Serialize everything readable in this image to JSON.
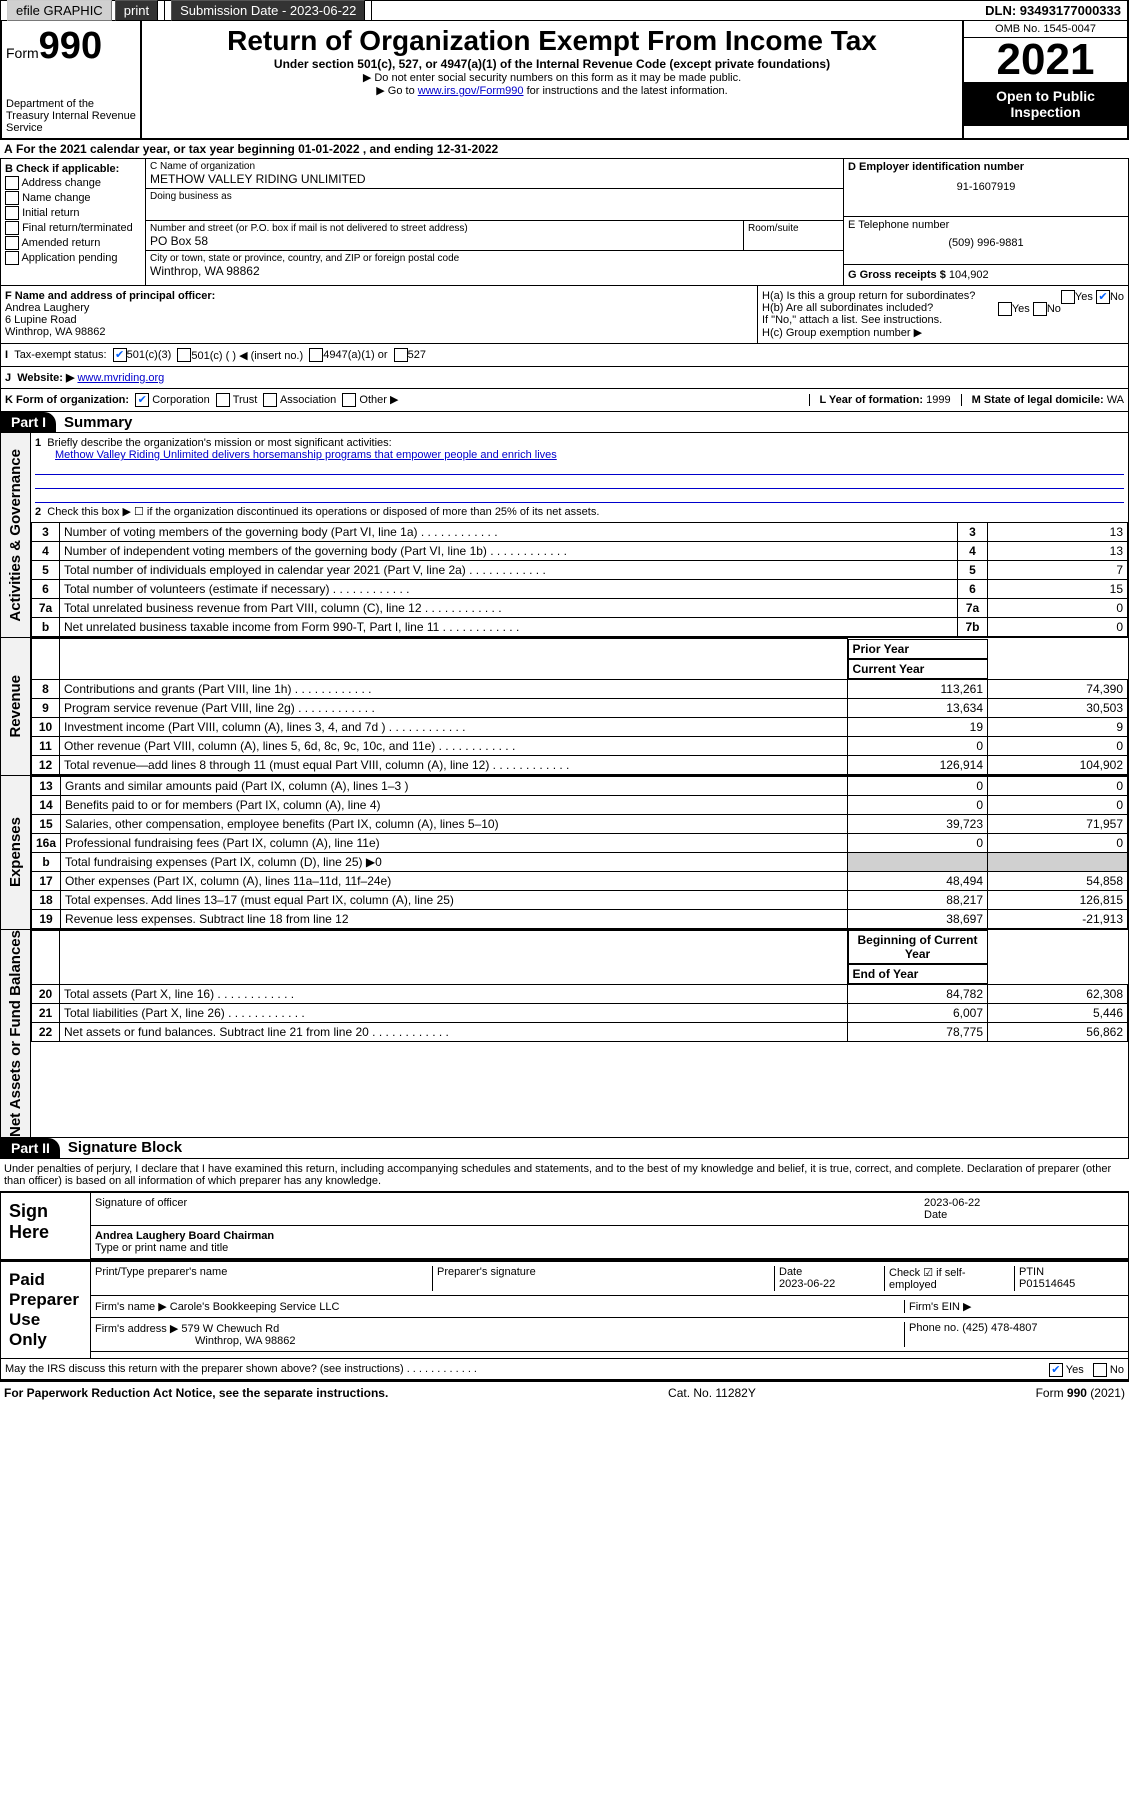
{
  "topbar": {
    "efile": "efile GRAPHIC",
    "print": "print",
    "subdate_lbl": "Submission Date - 2023-06-22",
    "dln": "DLN: 93493177000333"
  },
  "header": {
    "form": "Form",
    "num": "990",
    "dept": "Department of the Treasury\nInternal Revenue Service",
    "title": "Return of Organization Exempt From Income Tax",
    "sub": "Under section 501(c), 527, or 4947(a)(1) of the Internal Revenue Code (except private foundations)",
    "sub2": "▶ Do not enter social security numbers on this form as it may be made public.",
    "sub3a": "▶ Go to ",
    "sub3link": "www.irs.gov/Form990",
    "sub3b": " for instructions and the latest information.",
    "omb": "OMB No. 1545-0047",
    "year": "2021",
    "oti": "Open to Public Inspection"
  },
  "A": "For the 2021 calendar year, or tax year beginning 01-01-2022   , and ending 12-31-2022",
  "B": {
    "lbl": "B Check if applicable:",
    "opts": [
      "Address change",
      "Name change",
      "Initial return",
      "Final return/terminated",
      "Amended return",
      "Application pending"
    ]
  },
  "C": {
    "name_lbl": "C Name of organization",
    "name": "METHOW VALLEY RIDING UNLIMITED",
    "dba_lbl": "Doing business as",
    "dba": "",
    "addr_lbl": "Number and street (or P.O. box if mail is not delivered to street address)",
    "room_lbl": "Room/suite",
    "addr": "PO Box 58",
    "city_lbl": "City or town, state or province, country, and ZIP or foreign postal code",
    "city": "Winthrop, WA  98862"
  },
  "D": {
    "lbl": "D Employer identification number",
    "val": "91-1607919"
  },
  "E": {
    "lbl": "E Telephone number",
    "val": "(509) 996-9881"
  },
  "G": {
    "lbl": "G Gross receipts $",
    "val": "104,902"
  },
  "F": {
    "lbl": "F  Name and address of principal officer:",
    "name": "Andrea Laughery",
    "addr1": "6 Lupine Road",
    "addr2": "Winthrop, WA  98862"
  },
  "H": {
    "a": "H(a)  Is this a group return for subordinates?",
    "b": "H(b)  Are all subordinates included?",
    "b2": "If \"No,\" attach a list. See instructions.",
    "c": "H(c)  Group exemption number ▶"
  },
  "I": {
    "lbl": "Tax-exempt status:",
    "o1": "501(c)(3)",
    "o2": "501(c) (  ) ◀ (insert no.)",
    "o3": "4947(a)(1) or",
    "o4": "527"
  },
  "J": {
    "lbl": "Website: ▶",
    "val": "www.mvriding.org"
  },
  "K": {
    "lbl": "K Form of organization:",
    "o1": "Corporation",
    "o2": "Trust",
    "o3": "Association",
    "o4": "Other ▶"
  },
  "L": {
    "lbl": "L Year of formation:",
    "val": "1999"
  },
  "M": {
    "lbl": "M State of legal domicile:",
    "val": "WA"
  },
  "part1": {
    "lbl": "Part I",
    "title": "Summary"
  },
  "s1": {
    "l1": "Briefly describe the organization's mission or most significant activities:",
    "l1v": "Methow Valley Riding Unlimited delivers horsemanship programs that empower people and enrich lives",
    "l2": "Check this box ▶ ☐  if the organization discontinued its operations or disposed of more than 25% of its net assets.",
    "rows": [
      {
        "n": "3",
        "t": "Number of voting members of the governing body (Part VI, line 1a)",
        "b": "3",
        "v": "13"
      },
      {
        "n": "4",
        "t": "Number of independent voting members of the governing body (Part VI, line 1b)",
        "b": "4",
        "v": "13"
      },
      {
        "n": "5",
        "t": "Total number of individuals employed in calendar year 2021 (Part V, line 2a)",
        "b": "5",
        "v": "7"
      },
      {
        "n": "6",
        "t": "Total number of volunteers (estimate if necessary)",
        "b": "6",
        "v": "15"
      },
      {
        "n": "7a",
        "t": "Total unrelated business revenue from Part VIII, column (C), line 12",
        "b": "7a",
        "v": "0"
      },
      {
        "n": "b",
        "t": "Net unrelated business taxable income from Form 990-T, Part I, line 11",
        "b": "7b",
        "v": "0"
      }
    ]
  },
  "vtabs": [
    "Activities & Governance",
    "Revenue",
    "Expenses",
    "Net Assets or Fund Balances"
  ],
  "cols": {
    "py": "Prior Year",
    "cy": "Current Year"
  },
  "rev": [
    {
      "n": "8",
      "t": "Contributions and grants (Part VIII, line 1h)",
      "p": "113,261",
      "c": "74,390"
    },
    {
      "n": "9",
      "t": "Program service revenue (Part VIII, line 2g)",
      "p": "13,634",
      "c": "30,503"
    },
    {
      "n": "10",
      "t": "Investment income (Part VIII, column (A), lines 3, 4, and 7d )",
      "p": "19",
      "c": "9"
    },
    {
      "n": "11",
      "t": "Other revenue (Part VIII, column (A), lines 5, 6d, 8c, 9c, 10c, and 11e)",
      "p": "0",
      "c": "0"
    },
    {
      "n": "12",
      "t": "Total revenue—add lines 8 through 11 (must equal Part VIII, column (A), line 12)",
      "p": "126,914",
      "c": "104,902"
    }
  ],
  "exp": [
    {
      "n": "13",
      "t": "Grants and similar amounts paid (Part IX, column (A), lines 1–3 )",
      "p": "0",
      "c": "0"
    },
    {
      "n": "14",
      "t": "Benefits paid to or for members (Part IX, column (A), line 4)",
      "p": "0",
      "c": "0"
    },
    {
      "n": "15",
      "t": "Salaries, other compensation, employee benefits (Part IX, column (A), lines 5–10)",
      "p": "39,723",
      "c": "71,957"
    },
    {
      "n": "16a",
      "t": "Professional fundraising fees (Part IX, column (A), line 11e)",
      "p": "0",
      "c": "0"
    },
    {
      "n": "b",
      "t": "Total fundraising expenses (Part IX, column (D), line 25) ▶0",
      "p": "",
      "c": "",
      "grey": true
    },
    {
      "n": "17",
      "t": "Other expenses (Part IX, column (A), lines 11a–11d, 11f–24e)",
      "p": "48,494",
      "c": "54,858"
    },
    {
      "n": "18",
      "t": "Total expenses. Add lines 13–17 (must equal Part IX, column (A), line 25)",
      "p": "88,217",
      "c": "126,815"
    },
    {
      "n": "19",
      "t": "Revenue less expenses. Subtract line 18 from line 12",
      "p": "38,697",
      "c": "-21,913"
    }
  ],
  "cols2": {
    "py": "Beginning of Current Year",
    "cy": "End of Year"
  },
  "na": [
    {
      "n": "20",
      "t": "Total assets (Part X, line 16)",
      "p": "84,782",
      "c": "62,308"
    },
    {
      "n": "21",
      "t": "Total liabilities (Part X, line 26)",
      "p": "6,007",
      "c": "5,446"
    },
    {
      "n": "22",
      "t": "Net assets or fund balances. Subtract line 21 from line 20",
      "p": "78,775",
      "c": "56,862"
    }
  ],
  "part2": {
    "lbl": "Part II",
    "title": "Signature Block"
  },
  "perjury": "Under penalties of perjury, I declare that I have examined this return, including accompanying schedules and statements, and to the best of my knowledge and belief, it is true, correct, and complete. Declaration of preparer (other than officer) is based on all information of which preparer has any knowledge.",
  "sign": {
    "here": "Sign Here",
    "sig_lbl": "Signature of officer",
    "date_lbl": "Date",
    "date": "2023-06-22",
    "name": "Andrea Laughery  Board Chairman",
    "type_lbl": "Type or print name and title"
  },
  "prep": {
    "lbl": "Paid Preparer Use Only",
    "pt_name": "Print/Type preparer's name",
    "pt_sig": "Preparer's signature",
    "pt_date_lbl": "Date",
    "pt_date": "2023-06-22",
    "chk_lbl": "Check ☑ if self-employed",
    "ptin_lbl": "PTIN",
    "ptin": "P01514645",
    "firm_lbl": "Firm's name   ▶",
    "firm": "Carole's Bookkeeping Service LLC",
    "ein_lbl": "Firm's EIN ▶",
    "addr_lbl": "Firm's address ▶",
    "addr": "579 W Chewuch Rd",
    "city": "Winthrop, WA  98862",
    "phone_lbl": "Phone no.",
    "phone": "(425) 478-4807"
  },
  "discuss": "May the IRS discuss this return with the preparer shown above? (see instructions)",
  "ftr": {
    "l": "For Paperwork Reduction Act Notice, see the separate instructions.",
    "m": "Cat. No. 11282Y",
    "r": "Form 990 (2021)"
  }
}
